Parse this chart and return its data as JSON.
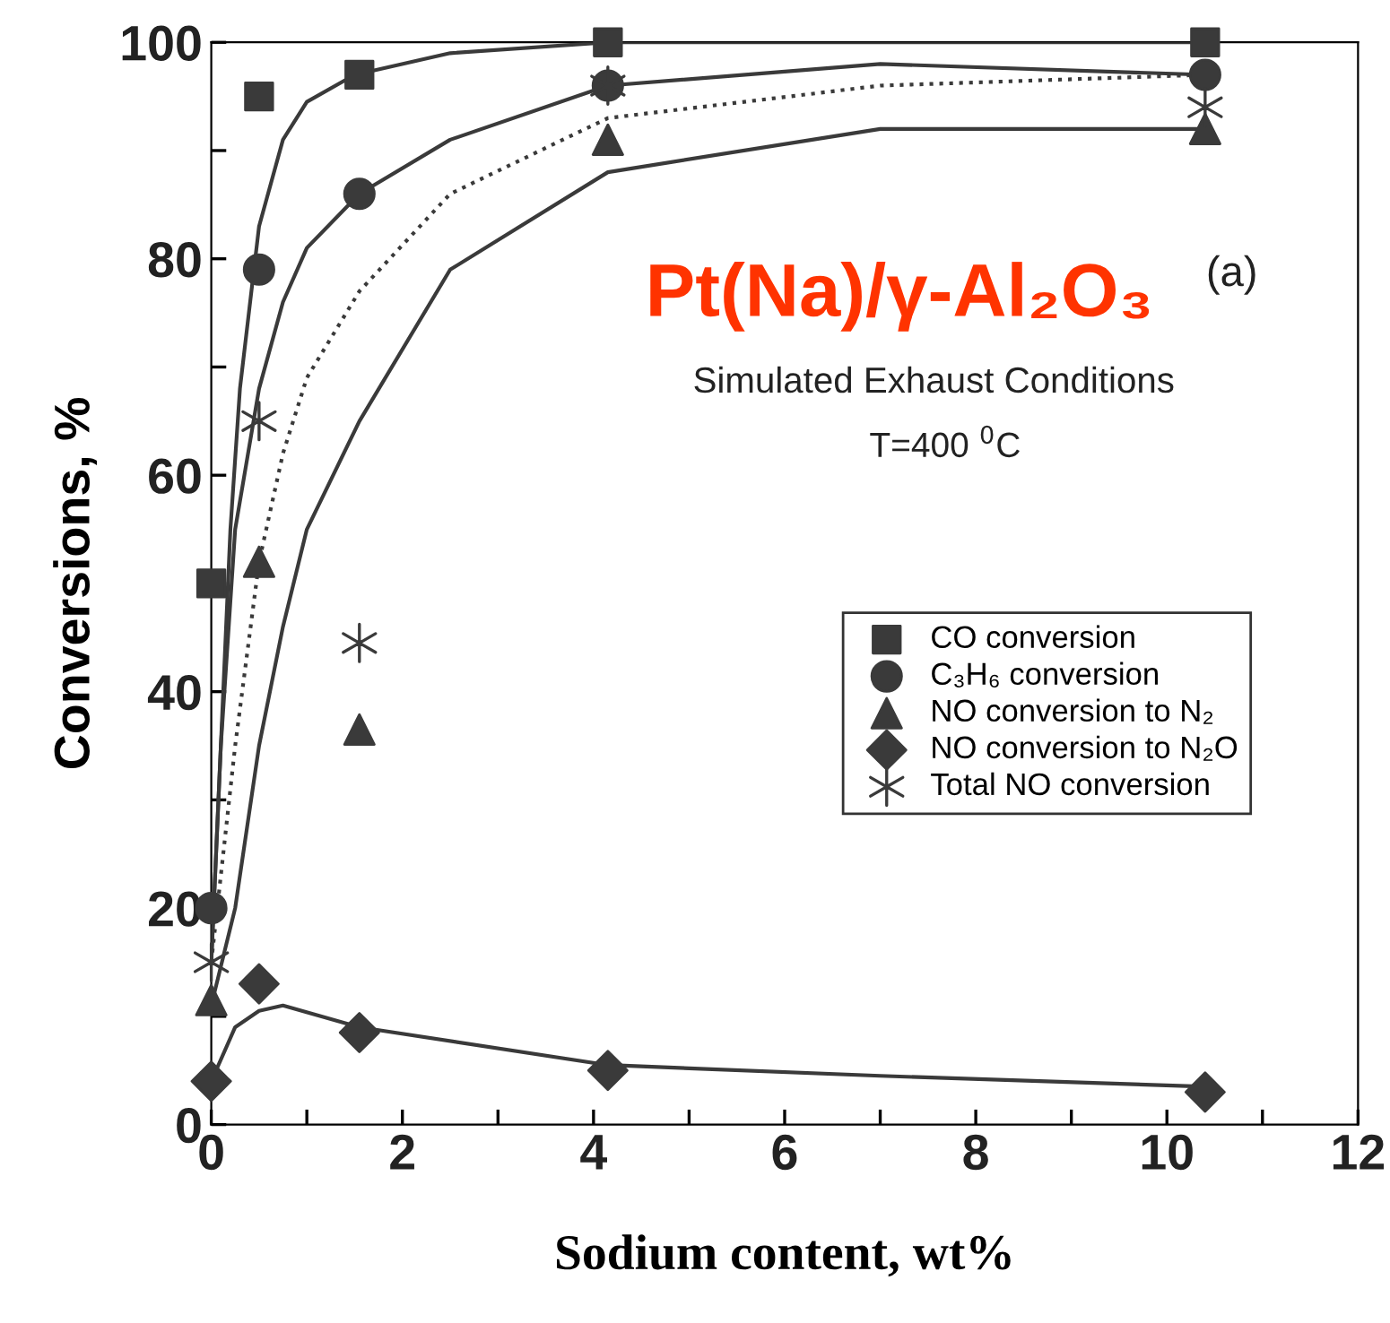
{
  "chart_data": {
    "type": "scatter",
    "xlabel": "Sodium content, wt%",
    "ylabel": "Conversions, %",
    "xlim": [
      0,
      12
    ],
    "ylim": [
      0,
      100
    ],
    "xticks": [
      0,
      {
        "value": 1,
        "label": null
      },
      2,
      {
        "value": 3,
        "label": null
      },
      4,
      {
        "value": 5,
        "label": null
      },
      6,
      {
        "value": 7,
        "label": null
      },
      8,
      {
        "value": 9,
        "label": null
      },
      10,
      {
        "value": 11,
        "label": null
      },
      12
    ],
    "yticks": [
      0,
      {
        "value": 10,
        "label": null
      },
      20,
      {
        "value": 30,
        "label": null
      },
      40,
      {
        "value": 50,
        "label": null
      },
      60,
      {
        "value": 70,
        "label": null
      },
      80,
      {
        "value": 90,
        "label": null
      },
      100
    ],
    "grid": false,
    "legend": "right",
    "series": [
      {
        "name": "CO conversion",
        "marker": "square",
        "color": "#3a3a3a",
        "x": [
          0,
          0.5,
          1.55,
          4.15,
          10.4
        ],
        "values": [
          50,
          95,
          97,
          100,
          100
        ]
      },
      {
        "name": "C₃H₆ conversion",
        "marker": "circle",
        "color": "#3a3a3a",
        "x": [
          0,
          0.5,
          1.55,
          4.15,
          10.4
        ],
        "values": [
          20,
          79,
          86,
          96,
          97
        ]
      },
      {
        "name": "NO conversion to N₂",
        "marker": "triangle",
        "color": "#3a3a3a",
        "x": [
          0,
          0.5,
          1.55,
          4.15,
          10.4
        ],
        "values": [
          11.5,
          52,
          36.5,
          91,
          92
        ]
      },
      {
        "name": "NO conversion to N₂O",
        "marker": "diamond",
        "color": "#3a3a3a",
        "x": [
          0,
          0.5,
          1.55,
          4.15,
          10.4
        ],
        "values": [
          4,
          13,
          8.5,
          5,
          3
        ]
      },
      {
        "name": "Total NO conversion",
        "marker": "cross",
        "color": "#3a3a3a",
        "x": [
          0,
          0.5,
          1.55,
          4.15,
          10.4
        ],
        "values": [
          15,
          65,
          44.5,
          96,
          94
        ]
      },
      {
        "type": "line",
        "line_style": "solid",
        "color": "#3a3a3a",
        "x": [
          0,
          0.1,
          0.2,
          0.3,
          0.5,
          0.75,
          1.0,
          1.5,
          2.5,
          4.15,
          7,
          10.4
        ],
        "values": [
          15,
          35,
          55,
          68,
          83,
          91,
          94.5,
          97,
          99,
          100,
          100,
          100
        ]
      },
      {
        "type": "line",
        "line_style": "solid",
        "color": "#3a3a3a",
        "x": [
          0,
          0.1,
          0.25,
          0.5,
          0.75,
          1.0,
          1.55,
          2.5,
          4.15,
          7,
          10.4
        ],
        "values": [
          15,
          35,
          55,
          68,
          76,
          81,
          86,
          91,
          96,
          98,
          97
        ]
      },
      {
        "type": "line",
        "line_style": "dotted",
        "color": "#3a3a3a",
        "x": [
          0,
          0.25,
          0.5,
          0.75,
          1,
          1.55,
          2.5,
          4.15,
          7,
          10.4
        ],
        "values": [
          15,
          35,
          52,
          62,
          69,
          77,
          86,
          93,
          96,
          97
        ]
      },
      {
        "type": "line",
        "line_style": "solid",
        "color": "#3a3a3a",
        "x": [
          0,
          0.25,
          0.5,
          0.75,
          1,
          1.55,
          2.5,
          4.15,
          7,
          10.4
        ],
        "values": [
          11,
          20,
          35,
          46,
          55,
          65,
          79,
          88,
          92,
          92
        ]
      },
      {
        "type": "line",
        "line_style": "solid",
        "color": "#3a3a3a",
        "x": [
          0,
          0.25,
          0.5,
          0.75,
          1.55,
          4.15,
          7,
          10.4
        ],
        "values": [
          4,
          9,
          10.5,
          11,
          9,
          5.5,
          4.5,
          3.5
        ]
      }
    ],
    "title": "Pt(Na)/γ-Al₂O₃",
    "annotations": [
      "(a)",
      "Simulated Exhaust Conditions",
      "T=400 $^{0}$C"
    ]
  }
}
